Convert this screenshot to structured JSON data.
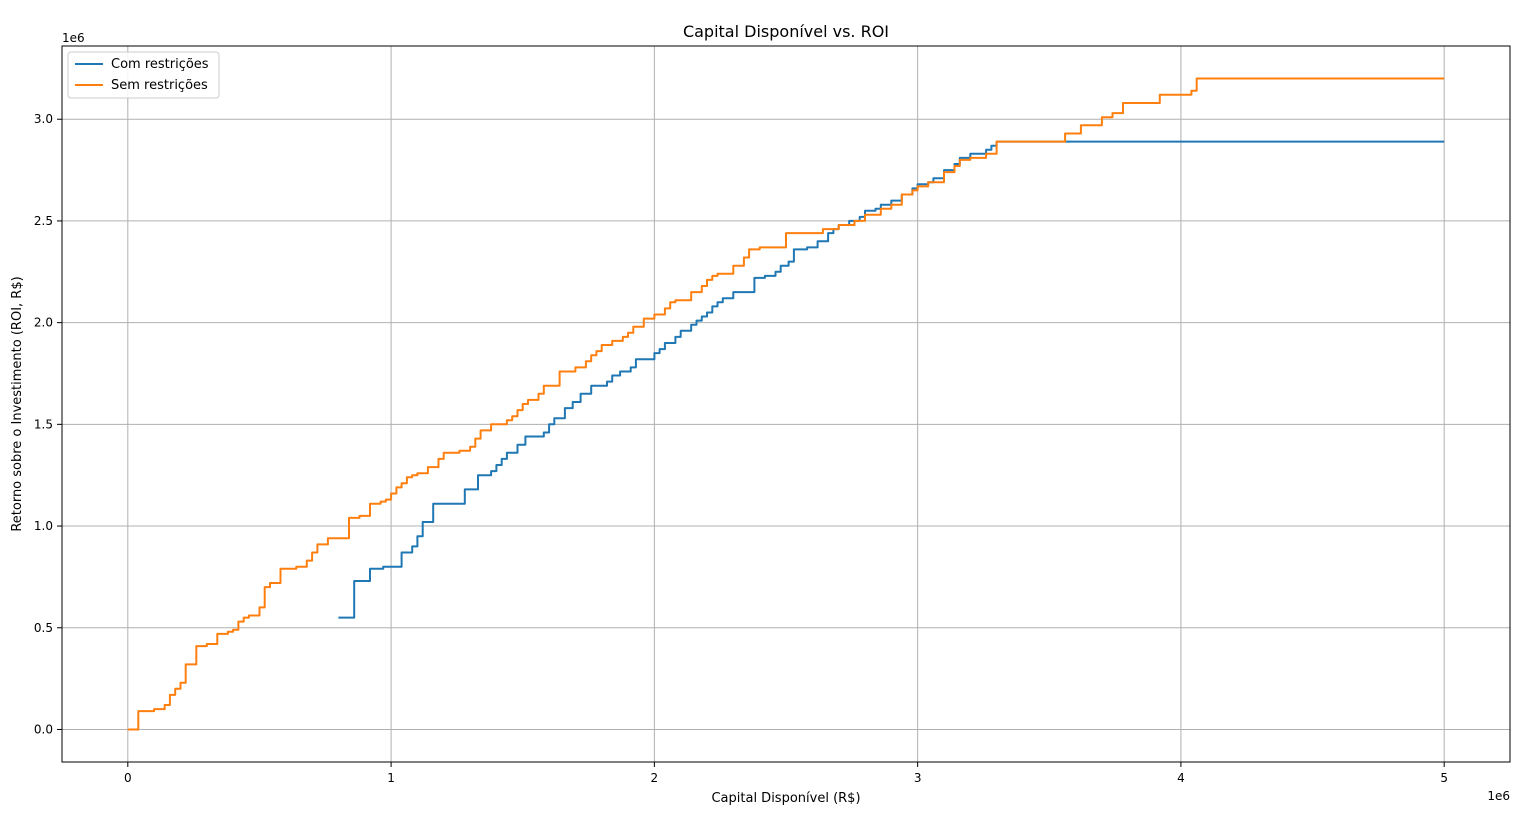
{
  "chart_data": {
    "type": "line",
    "title": "Capital Disponível vs. ROI",
    "xlabel": "Capital Disponível (R$)",
    "ylabel": "Retorno sobre o Investimento (ROI, R$)",
    "x_offset_label": "1e6",
    "y_offset_label": "1e6",
    "xlim": [
      -250000,
      5250000
    ],
    "ylim": [
      -160000,
      3360000
    ],
    "x_ticks": [
      0,
      1000000,
      2000000,
      3000000,
      4000000,
      5000000
    ],
    "x_tick_labels": [
      "0",
      "1",
      "2",
      "3",
      "4",
      "5"
    ],
    "y_ticks": [
      0,
      500000,
      1000000,
      1500000,
      2000000,
      2500000,
      3000000
    ],
    "y_tick_labels": [
      "0.0",
      "0.5",
      "1.0",
      "1.5",
      "2.0",
      "2.5",
      "3.0"
    ],
    "grid": true,
    "legend_position": "top-left",
    "step": "post",
    "series": [
      {
        "name": "Com restrições",
        "color": "#1f77b4",
        "x": [
          800000,
          860000,
          920000,
          970000,
          1040000,
          1080000,
          1100000,
          1120000,
          1160000,
          1280000,
          1330000,
          1380000,
          1400000,
          1420000,
          1440000,
          1480000,
          1510000,
          1580000,
          1600000,
          1620000,
          1660000,
          1690000,
          1720000,
          1760000,
          1820000,
          1840000,
          1870000,
          1910000,
          1930000,
          2000000,
          2020000,
          2040000,
          2080000,
          2100000,
          2140000,
          2160000,
          2180000,
          2200000,
          2220000,
          2240000,
          2260000,
          2300000,
          2380000,
          2420000,
          2460000,
          2480000,
          2510000,
          2530000,
          2580000,
          2620000,
          2660000,
          2680000,
          2700000,
          2740000,
          2780000,
          2800000,
          2840000,
          2860000,
          2900000,
          2940000,
          2980000,
          3000000,
          3040000,
          3060000,
          3100000,
          3140000,
          3160000,
          3200000,
          3260000,
          3280000,
          3300000,
          3480000,
          5000000
        ],
        "y": [
          550000,
          730000,
          790000,
          800000,
          870000,
          900000,
          950000,
          1020000,
          1110000,
          1180000,
          1250000,
          1270000,
          1300000,
          1330000,
          1360000,
          1400000,
          1440000,
          1460000,
          1500000,
          1530000,
          1580000,
          1610000,
          1650000,
          1690000,
          1710000,
          1740000,
          1760000,
          1780000,
          1820000,
          1850000,
          1870000,
          1900000,
          1930000,
          1960000,
          1990000,
          2010000,
          2030000,
          2050000,
          2080000,
          2100000,
          2120000,
          2150000,
          2220000,
          2230000,
          2250000,
          2280000,
          2300000,
          2360000,
          2370000,
          2400000,
          2440000,
          2460000,
          2480000,
          2500000,
          2520000,
          2550000,
          2560000,
          2580000,
          2600000,
          2630000,
          2660000,
          2680000,
          2690000,
          2710000,
          2750000,
          2780000,
          2810000,
          2830000,
          2850000,
          2870000,
          2890000,
          2890000,
          2890000
        ]
      },
      {
        "name": "Sem restrições",
        "color": "#ff7f0e",
        "x": [
          0,
          40000,
          100000,
          140000,
          160000,
          180000,
          200000,
          220000,
          260000,
          300000,
          340000,
          380000,
          400000,
          420000,
          440000,
          460000,
          500000,
          520000,
          540000,
          580000,
          640000,
          680000,
          700000,
          720000,
          760000,
          840000,
          880000,
          920000,
          960000,
          980000,
          1000000,
          1020000,
          1040000,
          1060000,
          1080000,
          1100000,
          1140000,
          1180000,
          1200000,
          1260000,
          1300000,
          1320000,
          1340000,
          1380000,
          1440000,
          1460000,
          1480000,
          1500000,
          1520000,
          1560000,
          1580000,
          1640000,
          1700000,
          1740000,
          1760000,
          1780000,
          1800000,
          1840000,
          1880000,
          1900000,
          1920000,
          1960000,
          2000000,
          2040000,
          2060000,
          2080000,
          2140000,
          2180000,
          2200000,
          2220000,
          2240000,
          2300000,
          2340000,
          2360000,
          2400000,
          2500000,
          2640000,
          2700000,
          2760000,
          2800000,
          2860000,
          2900000,
          2940000,
          2980000,
          3000000,
          3040000,
          3100000,
          3140000,
          3160000,
          3200000,
          3260000,
          3300000,
          3480000,
          3560000,
          3620000,
          3700000,
          3740000,
          3780000,
          3920000,
          4040000,
          4060000,
          5000000
        ],
        "y": [
          0,
          90000,
          100000,
          120000,
          170000,
          200000,
          230000,
          320000,
          410000,
          420000,
          470000,
          480000,
          490000,
          530000,
          550000,
          560000,
          600000,
          700000,
          720000,
          790000,
          800000,
          830000,
          870000,
          910000,
          940000,
          1040000,
          1050000,
          1110000,
          1120000,
          1130000,
          1160000,
          1190000,
          1210000,
          1240000,
          1250000,
          1260000,
          1290000,
          1330000,
          1360000,
          1370000,
          1390000,
          1430000,
          1470000,
          1500000,
          1520000,
          1540000,
          1570000,
          1600000,
          1620000,
          1650000,
          1690000,
          1760000,
          1780000,
          1810000,
          1840000,
          1860000,
          1890000,
          1910000,
          1930000,
          1950000,
          1980000,
          2020000,
          2040000,
          2070000,
          2100000,
          2110000,
          2150000,
          2180000,
          2210000,
          2230000,
          2240000,
          2280000,
          2320000,
          2360000,
          2370000,
          2440000,
          2460000,
          2480000,
          2500000,
          2530000,
          2560000,
          2580000,
          2630000,
          2650000,
          2670000,
          2690000,
          2740000,
          2770000,
          2800000,
          2810000,
          2830000,
          2890000,
          2890000,
          2930000,
          2970000,
          3010000,
          3030000,
          3080000,
          3120000,
          3140000,
          3200000,
          3200000
        ]
      }
    ]
  }
}
